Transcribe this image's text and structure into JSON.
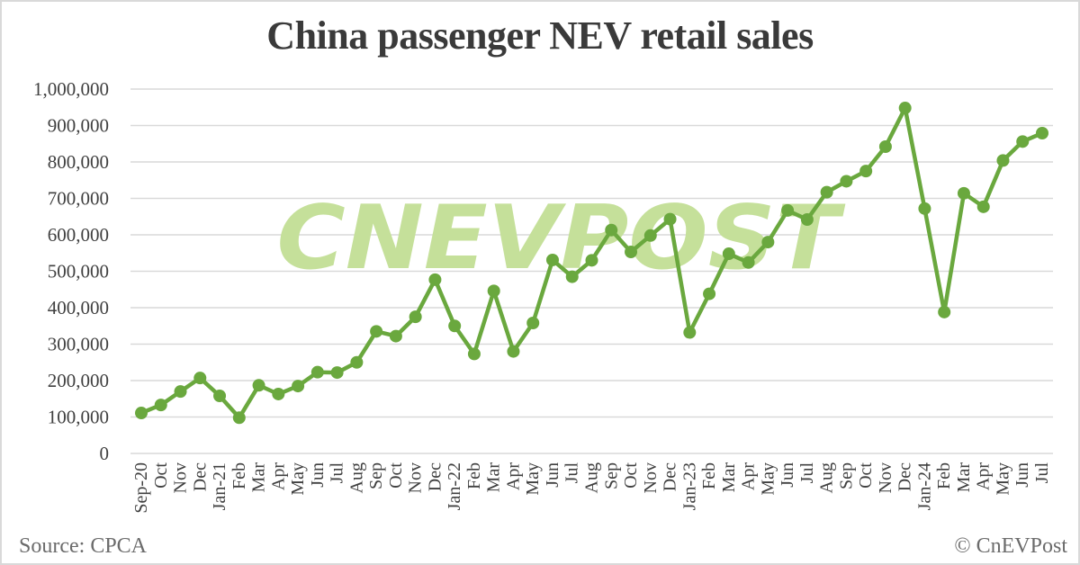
{
  "header": {
    "title": "China passenger NEV retail sales"
  },
  "footer": {
    "source": "Source: CPCA",
    "credit": "© CnEVPost"
  },
  "watermark": {
    "text": "CNEVPOST",
    "color": "#c5e09a"
  },
  "colors": {
    "line": "#6aa83e",
    "marker": "#6aa83e",
    "grid": "#d9d9d9",
    "text": "#404040"
  },
  "chart_data": {
    "type": "line",
    "title": "China passenger NEV retail sales",
    "xlabel": "",
    "ylabel": "",
    "ylim": [
      0,
      1000000
    ],
    "yticks": [
      0,
      100000,
      200000,
      300000,
      400000,
      500000,
      600000,
      700000,
      800000,
      900000,
      1000000
    ],
    "ytick_labels": [
      "0",
      "100,000",
      "200,000",
      "300,000",
      "400,000",
      "500,000",
      "600,000",
      "700,000",
      "800,000",
      "900,000",
      "1,000,000"
    ],
    "grid": true,
    "legend": null,
    "categories": [
      "Sep-20",
      "Oct",
      "Nov",
      "Dec",
      "Jan-21",
      "Feb",
      "Mar",
      "Apr",
      "May",
      "Jun",
      "Jul",
      "Aug",
      "Sep",
      "Oct",
      "Nov",
      "Dec",
      "Jan-22",
      "Feb",
      "Mar",
      "Apr",
      "May",
      "Jun",
      "Jul",
      "Aug",
      "Sep",
      "Oct",
      "Nov",
      "Dec",
      "Jan-23",
      "Feb",
      "Mar",
      "Apr",
      "May",
      "Jun",
      "Jul",
      "Aug",
      "Sep",
      "Oct",
      "Nov",
      "Dec",
      "Jan-24",
      "Feb",
      "Mar",
      "Apr",
      "May",
      "Jun",
      "Jul"
    ],
    "series": [
      {
        "name": "NEV retail sales",
        "values": [
          111000,
          133000,
          170000,
          207000,
          158000,
          98000,
          187000,
          163000,
          185000,
          223000,
          222000,
          250000,
          335000,
          322000,
          375000,
          477000,
          350000,
          273000,
          446000,
          280000,
          358000,
          531000,
          485000,
          530000,
          613000,
          553000,
          598000,
          643000,
          332000,
          438000,
          548000,
          524000,
          580000,
          667000,
          642000,
          717000,
          747000,
          775000,
          842000,
          948000,
          672000,
          388000,
          714000,
          677000,
          804000,
          856000,
          879000
        ]
      }
    ],
    "annotations": [
      "Source: CPCA",
      "© CnEVPost"
    ]
  }
}
